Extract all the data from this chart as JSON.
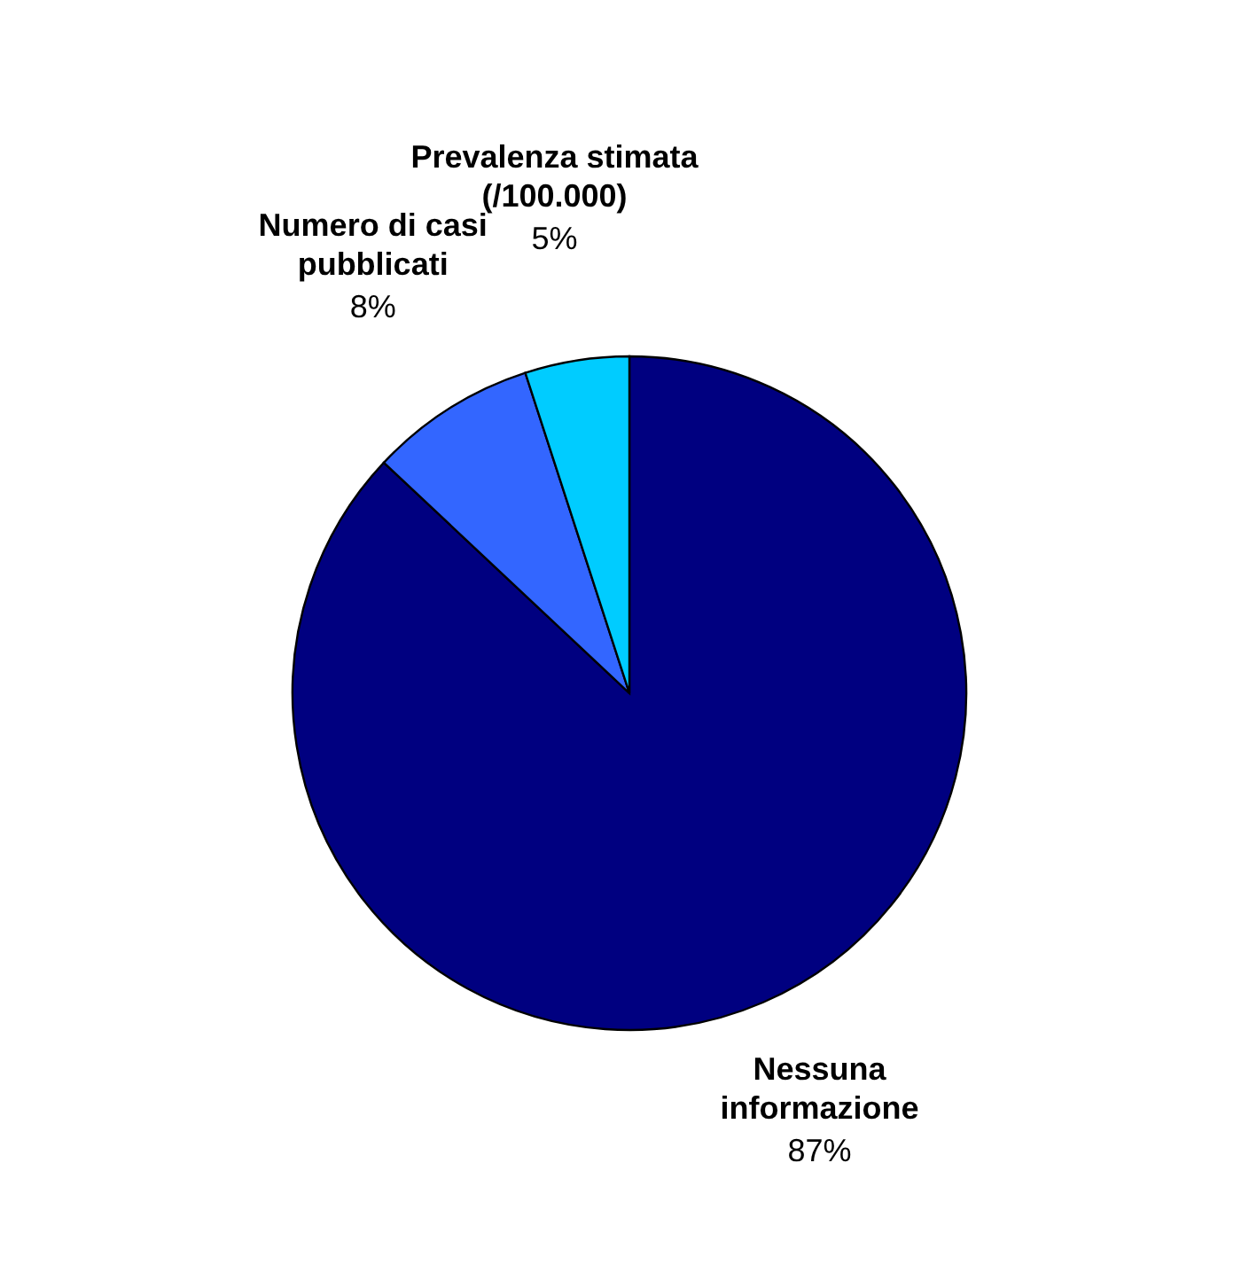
{
  "chart_data": {
    "type": "pie",
    "categories": [
      "Nessuna informazione",
      "Numero di casi pubblicati",
      "Prevalenza stimata (/100.000)"
    ],
    "values": [
      87,
      8,
      5
    ],
    "colors": [
      "#000080",
      "#3366ff",
      "#00ccff"
    ],
    "value_labels": [
      "87%",
      "8%",
      "5%"
    ]
  }
}
